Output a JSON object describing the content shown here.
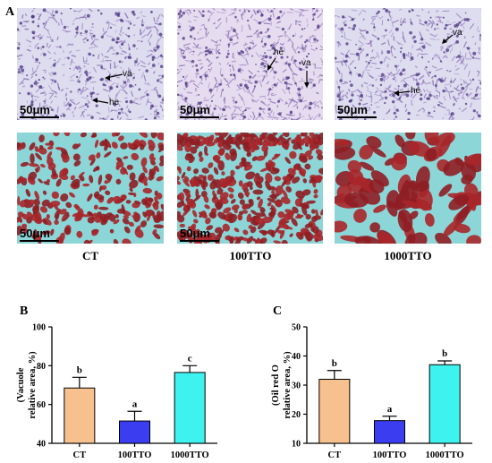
{
  "figure": {
    "panel_a": "A",
    "panel_b": "B",
    "panel_c": "C",
    "scale_text": "50μm",
    "group_labels": [
      "CT",
      "100TTO",
      "1000TTO"
    ],
    "annotations": {
      "va": "va",
      "he": "he"
    },
    "colors": {
      "he_bg": "#dedcef",
      "he_cells": "#7a5fa8",
      "oro_bg": "#8cd6d8",
      "oro_red": "#a8262a",
      "bar_ct": "#f7c08f",
      "bar_100": "#3b3df0",
      "bar_1000": "#3ef2f0"
    }
  },
  "chart_data": [
    {
      "type": "bar",
      "panel": "B",
      "categories": [
        "CT",
        "100TTO",
        "1000TTO"
      ],
      "values": [
        68.5,
        51.5,
        76.5
      ],
      "errors": [
        5.5,
        5.0,
        3.5
      ],
      "letters": [
        "b",
        "a",
        "c"
      ],
      "ylabel_line1": "(Vacuole",
      "ylabel_line2": "relative area, %)",
      "ylim": [
        40,
        100
      ],
      "yticks": [
        40,
        60,
        80,
        100
      ],
      "colors": [
        "#f7c08f",
        "#3b3df0",
        "#3ef2f0"
      ]
    },
    {
      "type": "bar",
      "panel": "C",
      "categories": [
        "CT",
        "100TTO",
        "1000TTO"
      ],
      "values": [
        32.0,
        17.8,
        37.0
      ],
      "errors": [
        3.0,
        1.5,
        1.3
      ],
      "letters": [
        "b",
        "a",
        "b"
      ],
      "ylabel_line1": "(Oil red O",
      "ylabel_line2": "relative area, %)",
      "ylim": [
        10,
        50
      ],
      "yticks": [
        10,
        20,
        30,
        40,
        50
      ],
      "colors": [
        "#f7c08f",
        "#3b3df0",
        "#3ef2f0"
      ]
    }
  ]
}
